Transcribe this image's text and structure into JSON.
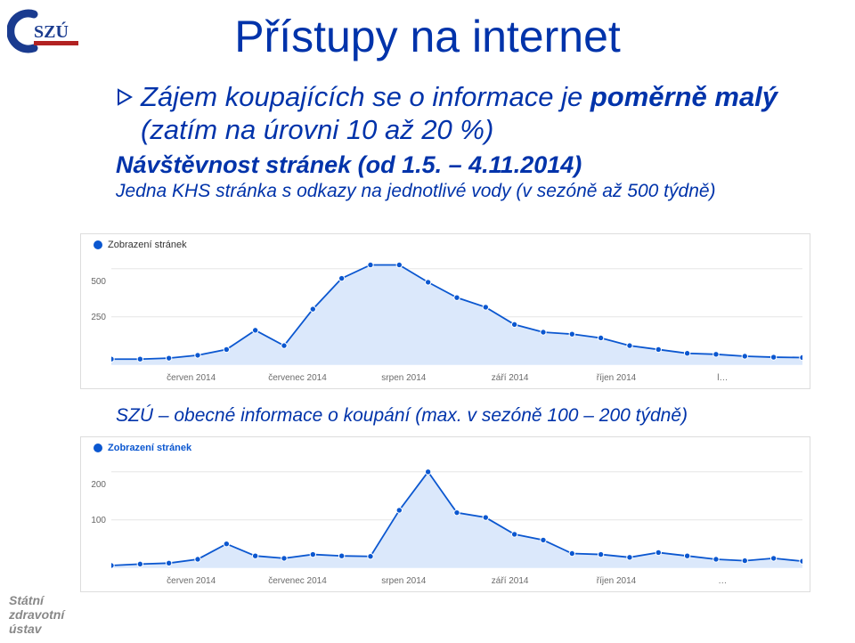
{
  "title": "Přístupy na internet",
  "bullet": {
    "line1_prefix": "Zájem koupajících se o informace je ",
    "line1_bold": "poměrně malý",
    "line2": " (zatím na úrovni 10 až 20 %)"
  },
  "sub_heading": "Návštěvnost stránek (od 1.5. – 4.11.2014)",
  "chart1_caption": "Jedna KHS stránka s odkazy na jednotlivé vody (v sezóně až 500 týdně)",
  "chart2_caption": "SZÚ – obecné informace o koupání (max. v sezóně 100 – 200 týdně)",
  "footer": {
    "line1": "Státní",
    "line2": "zdravotní",
    "line3": "ústav"
  },
  "logo": {
    "text": "SZÚ",
    "c_color": "#1a3b8f",
    "text_color": "#1a3b8f",
    "underline_color": "#b22222"
  },
  "chart_common": {
    "legend_label": "Zobrazení stránek",
    "x_labels": [
      "červen 2014",
      "červenec 2014",
      "srpen 2014",
      "září 2014",
      "říjen 2014",
      "l…"
    ],
    "x_labels2": [
      "červen 2014",
      "červenec 2014",
      "srpen 2014",
      "září 2014",
      "říjen 2014",
      "…"
    ],
    "line_color": "#0b57d0",
    "area_color": "#dbe8fb",
    "grid_color": "#e6e6e6",
    "marker_r": 3.2
  },
  "chart1": {
    "type": "area-line",
    "y_ticks": [
      250,
      500
    ],
    "ymax": 550,
    "y_tick_positions": {
      "250": 92,
      "500": 52
    },
    "points": [
      [
        0,
        30
      ],
      [
        1,
        30
      ],
      [
        2,
        35
      ],
      [
        3,
        50
      ],
      [
        4,
        80
      ],
      [
        5,
        180
      ],
      [
        6,
        100
      ],
      [
        7,
        290
      ],
      [
        8,
        450
      ],
      [
        9,
        520
      ],
      [
        10,
        520
      ],
      [
        11,
        430
      ],
      [
        12,
        350
      ],
      [
        13,
        300
      ],
      [
        14,
        210
      ],
      [
        15,
        170
      ],
      [
        16,
        160
      ],
      [
        17,
        140
      ],
      [
        18,
        100
      ],
      [
        19,
        80
      ],
      [
        20,
        60
      ],
      [
        21,
        55
      ],
      [
        22,
        45
      ],
      [
        23,
        40
      ],
      [
        24,
        38
      ]
    ],
    "n_points": 25
  },
  "chart2": {
    "type": "area-line",
    "y_ticks": [
      100,
      200
    ],
    "ymax": 220,
    "y_tick_positions": {
      "100": 92,
      "200": 52
    },
    "points": [
      [
        0,
        5
      ],
      [
        1,
        8
      ],
      [
        2,
        10
      ],
      [
        3,
        18
      ],
      [
        4,
        50
      ],
      [
        5,
        25
      ],
      [
        6,
        20
      ],
      [
        7,
        28
      ],
      [
        8,
        25
      ],
      [
        9,
        24
      ],
      [
        10,
        120
      ],
      [
        11,
        200
      ],
      [
        12,
        115
      ],
      [
        13,
        105
      ],
      [
        14,
        70
      ],
      [
        15,
        58
      ],
      [
        16,
        30
      ],
      [
        17,
        28
      ],
      [
        18,
        22
      ],
      [
        19,
        32
      ],
      [
        20,
        25
      ],
      [
        21,
        18
      ],
      [
        22,
        15
      ],
      [
        23,
        20
      ],
      [
        24,
        14
      ]
    ],
    "n_points": 25
  }
}
